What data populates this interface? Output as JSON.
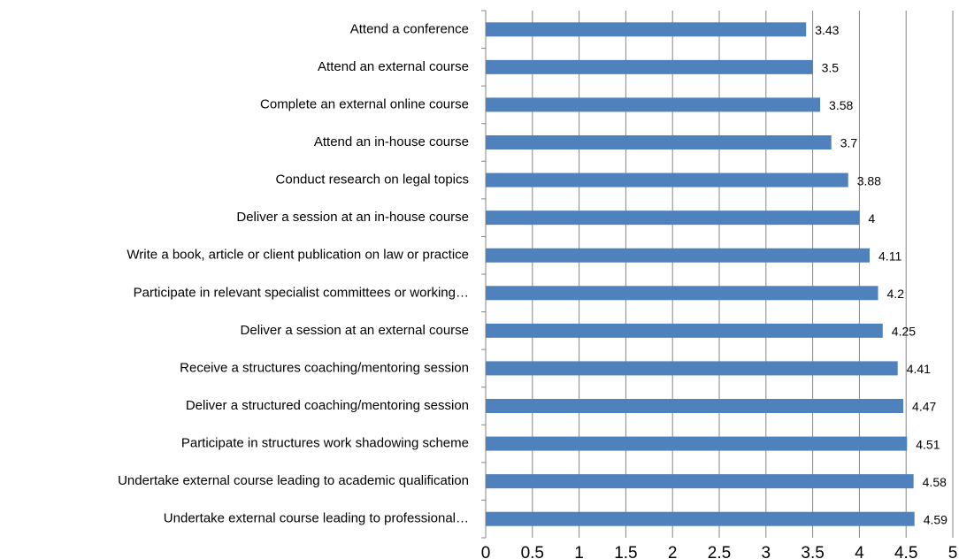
{
  "chart_data": {
    "type": "bar",
    "orientation": "horizontal",
    "categories": [
      "Attend a conference",
      "Attend an external course",
      "Complete an external online course",
      "Attend an in-house course",
      "Conduct research on legal topics",
      "Deliver a session at an in-house course",
      "Write a book, article or client publication on law or practice",
      "Participate in relevant specialist committees or working…",
      "Deliver a session at an external course",
      "Receive a structures coaching/mentoring session",
      "Deliver a structured coaching/mentoring session",
      "Participate in structures work shadowing scheme",
      "Undertake external course leading to academic qualification",
      "Undertake external course leading to professional…"
    ],
    "values": [
      3.43,
      3.5,
      3.58,
      3.7,
      3.88,
      4,
      4.11,
      4.2,
      4.25,
      4.41,
      4.47,
      4.51,
      4.58,
      4.59
    ],
    "color": "#4f81bd",
    "xlim": [
      0,
      5
    ],
    "xticks": [
      0,
      0.5,
      1,
      1.5,
      2,
      2.5,
      3,
      3.5,
      4,
      4.5,
      5
    ],
    "grid": true
  }
}
